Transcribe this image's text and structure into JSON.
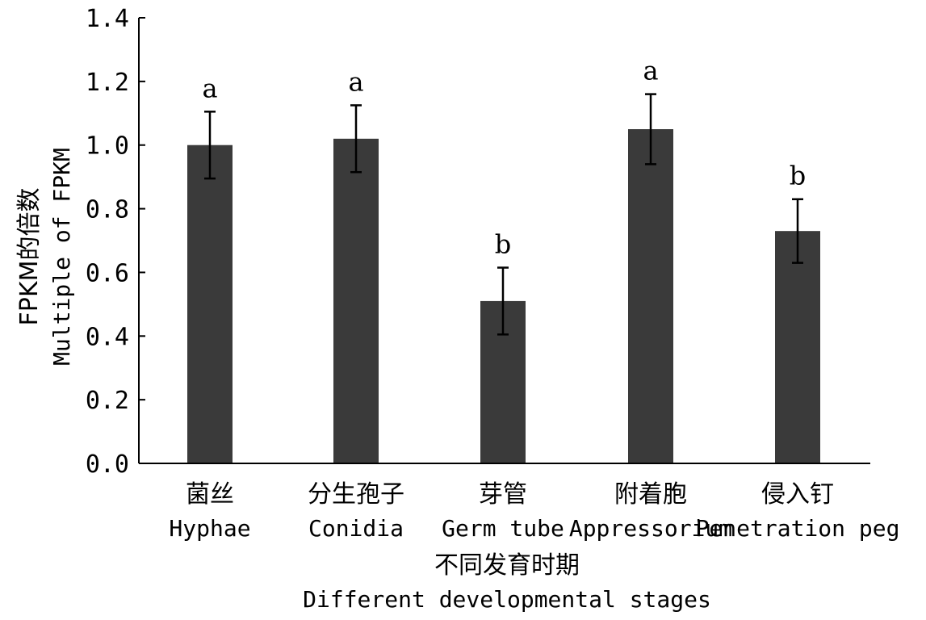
{
  "chart_data": {
    "type": "bar",
    "categories": [
      {
        "cn": "菌丝",
        "en": "Hyphae"
      },
      {
        "cn": "分生孢子",
        "en": "Conidia"
      },
      {
        "cn": "芽管",
        "en": "Germ tube"
      },
      {
        "cn": "附着胞",
        "en": "Appressorium"
      },
      {
        "cn": "侵入钉",
        "en": "Penetration peg"
      }
    ],
    "values": [
      1.0,
      1.02,
      0.51,
      1.05,
      0.73
    ],
    "error": [
      0.105,
      0.105,
      0.105,
      0.11,
      0.1
    ],
    "significance": [
      "a",
      "a",
      "b",
      "a",
      "b"
    ],
    "ylim": [
      0,
      1.4
    ],
    "yticks": [
      "0.0",
      "0.2",
      "0.4",
      "0.6",
      "0.8",
      "1.0",
      "1.2",
      "1.4"
    ],
    "ylabel_cn": "FPKM的倍数",
    "ylabel_en": "Multiple of FPKM",
    "xlabel_cn": "不同发育时期",
    "xlabel_en": "Different developmental stages",
    "bar_color": "#3a3a3a",
    "grid": false,
    "legend": false
  }
}
